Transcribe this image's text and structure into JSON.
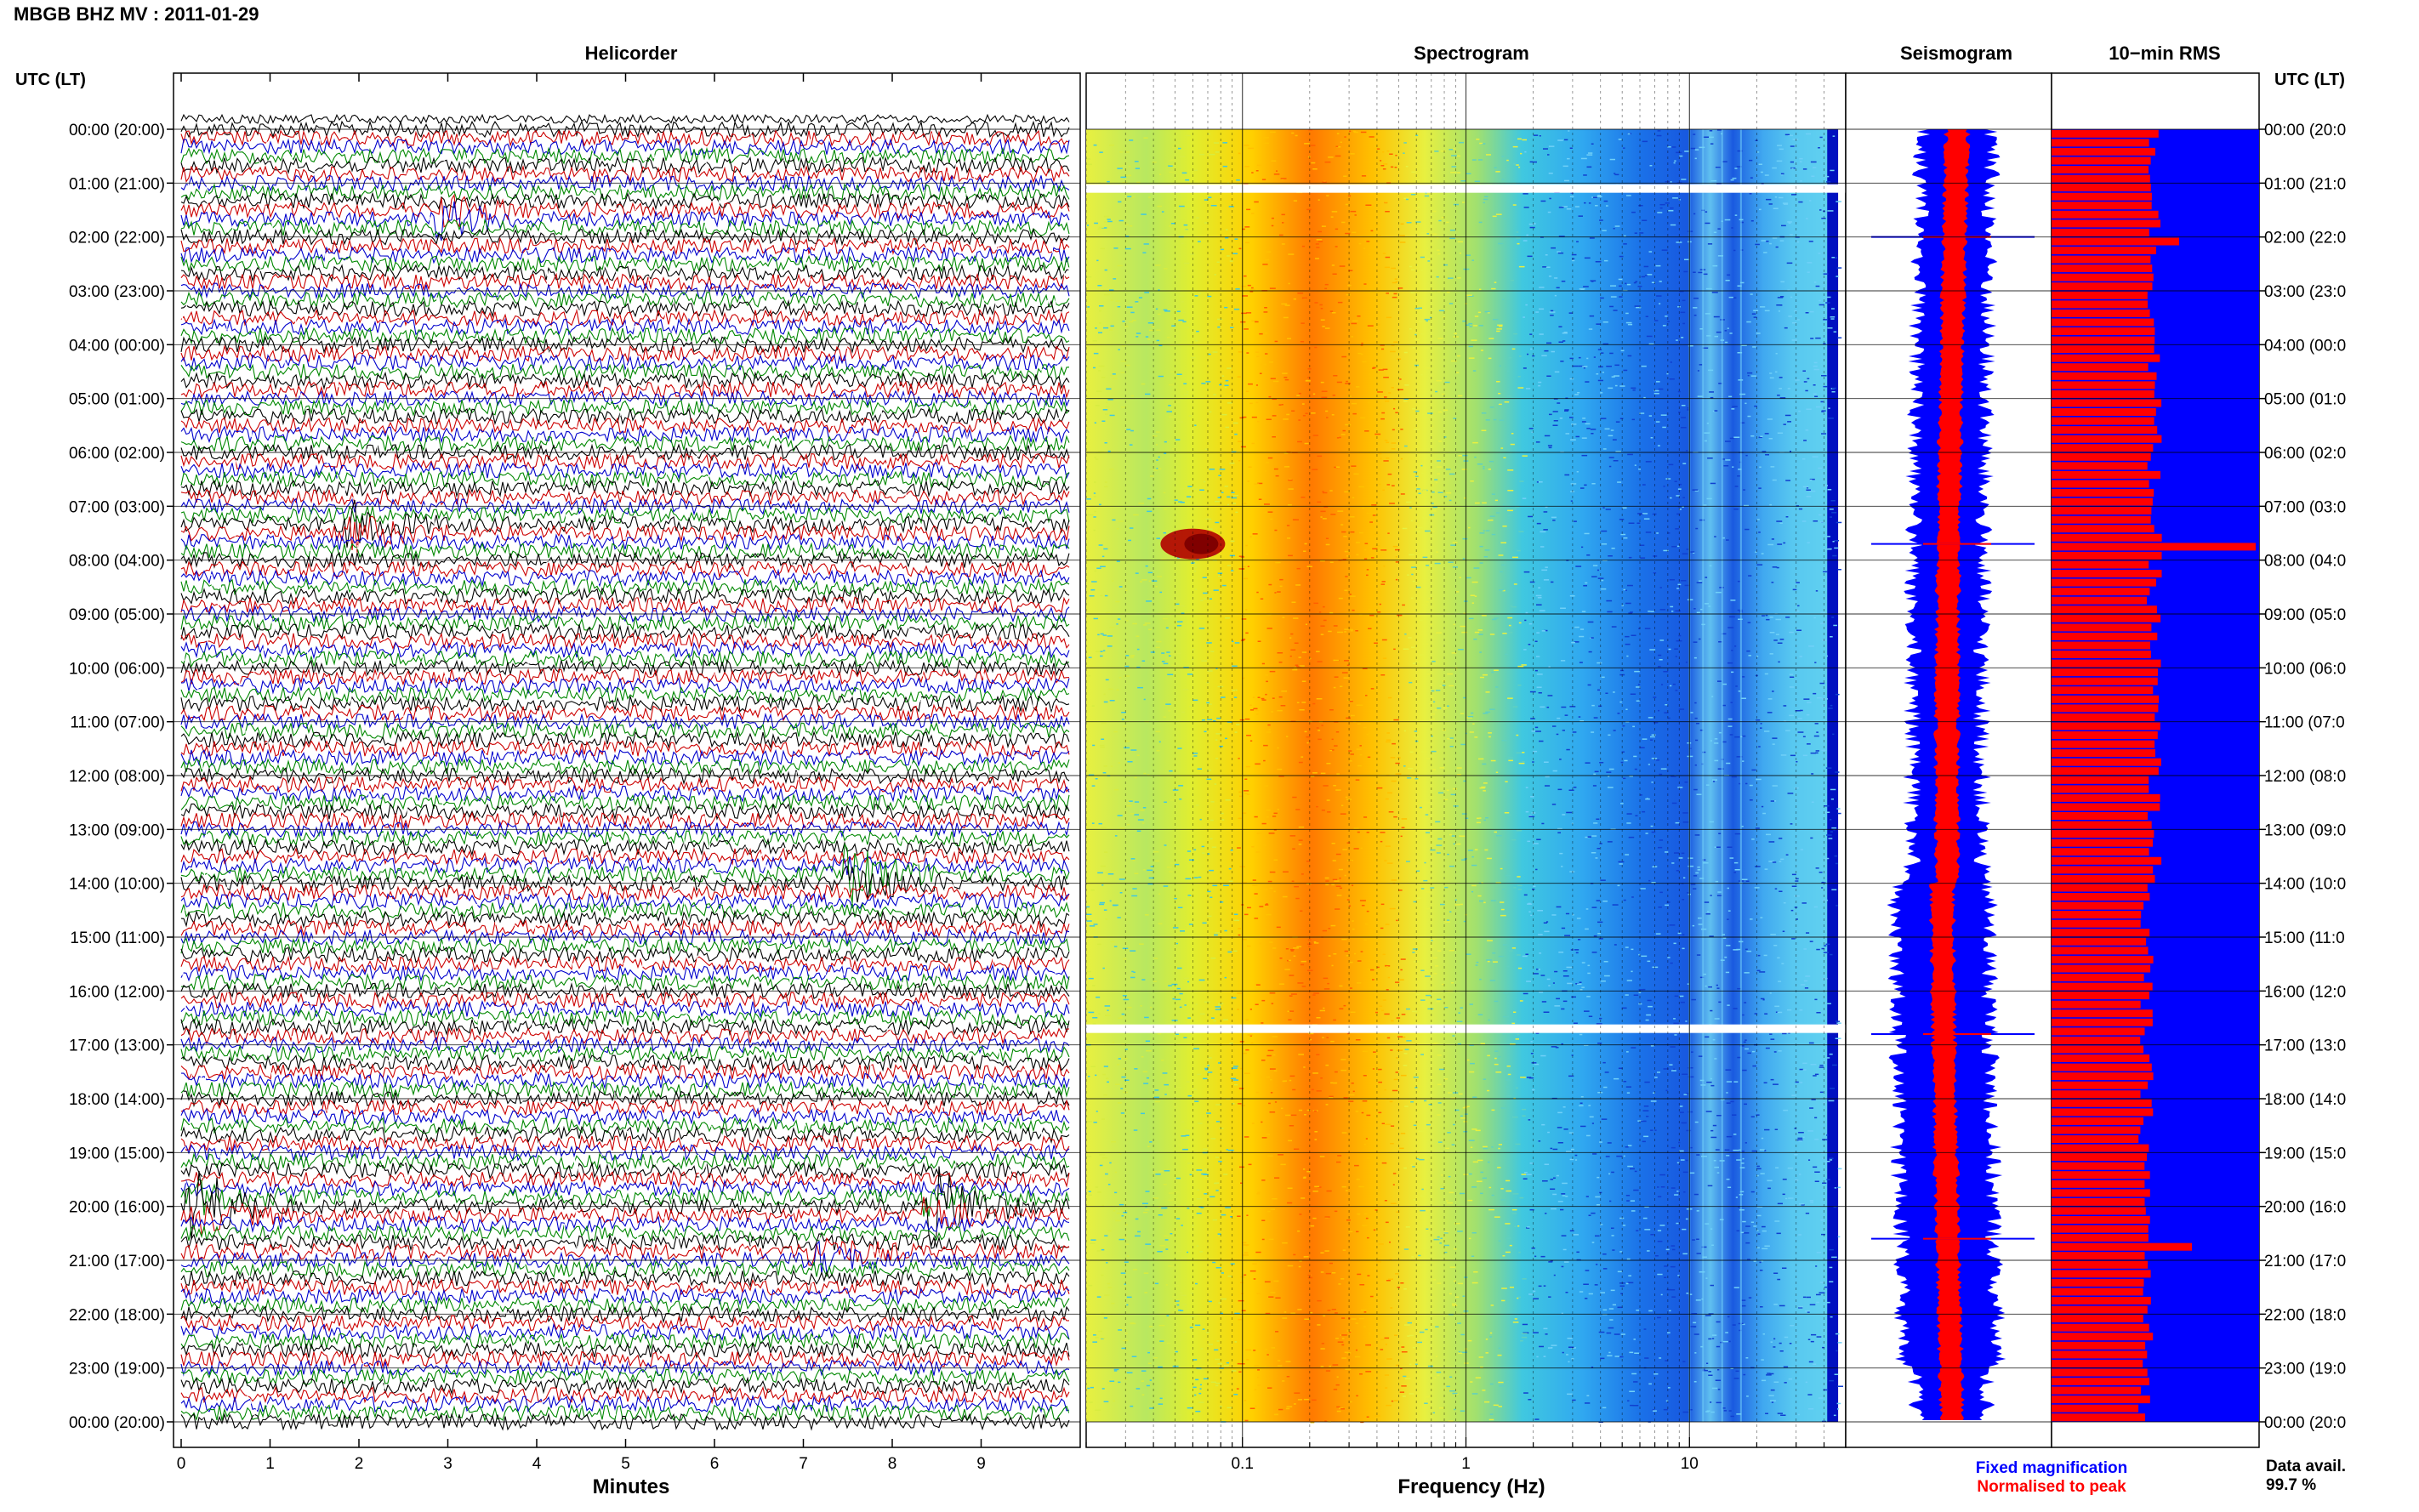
{
  "title": "MBGB BHZ MV : 2011-01-29",
  "axis_time_label": "UTC (LT)",
  "panels": {
    "helicorder": "Helicorder",
    "spectrogram": "Spectrogram",
    "seismogram": "Seismogram",
    "rms": "10−min RMS"
  },
  "time_ticks": [
    "00:00 (20:00)",
    "01:00 (21:00)",
    "02:00 (22:00)",
    "03:00 (23:00)",
    "04:00 (00:00)",
    "05:00 (01:00)",
    "06:00 (02:00)",
    "07:00 (03:00)",
    "08:00 (04:00)",
    "09:00 (05:00)",
    "10:00 (06:00)",
    "11:00 (07:00)",
    "12:00 (08:00)",
    "13:00 (09:00)",
    "14:00 (10:00)",
    "15:00 (11:00)",
    "16:00 (12:00)",
    "17:00 (13:00)",
    "18:00 (14:00)",
    "19:00 (15:00)",
    "20:00 (16:00)",
    "21:00 (17:00)",
    "22:00 (18:00)",
    "23:00 (19:00)",
    "00:00 (20:00)"
  ],
  "right_ticks": [
    "00:00 (20:0",
    "01:00 (21:0",
    "02:00 (22:0",
    "03:00 (23:0",
    "04:00 (00:0",
    "05:00 (01:0",
    "06:00 (02:0",
    "07:00 (03:0",
    "08:00 (04:0",
    "09:00 (05:0",
    "10:00 (06:0",
    "11:00 (07:0",
    "12:00 (08:0",
    "13:00 (09:0",
    "14:00 (10:0",
    "15:00 (11:0",
    "16:00 (12:0",
    "17:00 (13:0",
    "18:00 (14:0",
    "19:00 (15:0",
    "20:00 (16:0",
    "21:00 (17:0",
    "22:00 (18:0",
    "23:00 (19:0",
    "00:00 (20:0"
  ],
  "chart_data": [
    {
      "type": "line",
      "name": "helicorder",
      "xlabel": "Minutes",
      "x_ticks": [
        "0",
        "1",
        "2",
        "3",
        "4",
        "5",
        "6",
        "7",
        "8",
        "9"
      ],
      "xlim": [
        0,
        10
      ],
      "rows_per_hour": 6,
      "trace_colors": [
        "#000000",
        "#cc0000",
        "#0000cc",
        "#008800"
      ],
      "events_minutes": [
        {
          "hour": 1.6,
          "minute": 3.0,
          "amp": 2.5
        },
        {
          "hour": 7.4,
          "minute": 2.0,
          "amp": 3.0
        },
        {
          "hour": 13.9,
          "minute": 7.6,
          "amp": 4.0
        },
        {
          "hour": 20.0,
          "minute": 0.2,
          "amp": 5.0
        },
        {
          "hour": 20.0,
          "minute": 8.5,
          "amp": 4.5
        },
        {
          "hour": 20.9,
          "minute": 7.2,
          "amp": 2.5
        }
      ]
    },
    {
      "type": "heatmap",
      "name": "spectrogram",
      "xlabel": "Frequency (Hz)",
      "x_scale": "log",
      "x_ticks": [
        "0.1",
        "1",
        "10"
      ],
      "xlim": [
        0.02,
        50
      ],
      "gaps_hours": [
        1.1,
        16.7
      ],
      "event_hours": [
        {
          "hour": 7.7,
          "freq": 0.06
        }
      ]
    },
    {
      "type": "area",
      "name": "seismogram",
      "legend": [
        "Fixed magnification",
        "Normalised to peak"
      ],
      "legend_colors": [
        "#0000ff",
        "#ff0000"
      ]
    },
    {
      "type": "bar",
      "name": "10-min RMS",
      "colors": [
        "#ff0000",
        "#0000ff"
      ],
      "note_label": "Data avail.",
      "data_available": "99.7 %"
    }
  ]
}
